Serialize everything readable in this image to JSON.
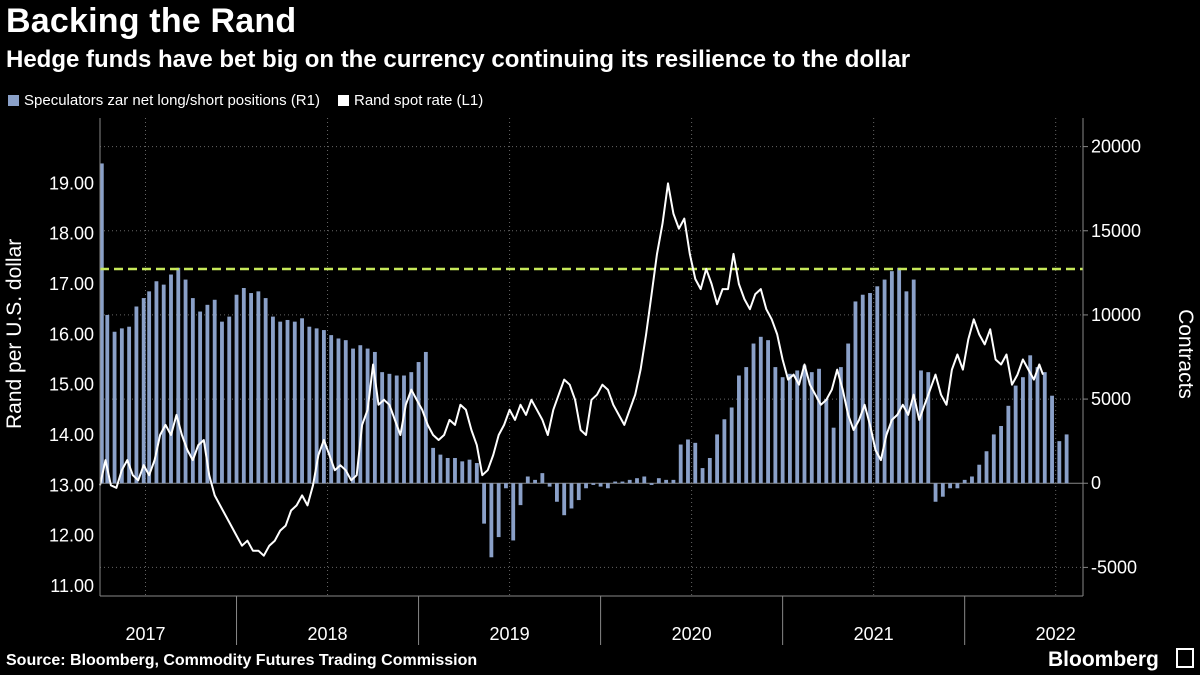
{
  "title": "Backing the Rand",
  "subtitle": "Hedge funds have bet big on the currency continuing its resilience to the dollar",
  "legend": [
    {
      "label": "Speculators zar net long/short positions (R1)",
      "color": "#8aa0c8"
    },
    {
      "label": "Rand spot rate (L1)",
      "color": "#ffffff"
    }
  ],
  "source": "Source: Bloomberg, Commodity Futures Trading Commission",
  "brand": "Bloomberg",
  "chart_data": {
    "type": "bar+line",
    "title": "Backing the Rand",
    "ylabel_left": "Rand per U.S. dollar",
    "ylabel_right": "Contracts",
    "left_axis": {
      "range": [
        10.8,
        20.3
      ],
      "ticks": [
        "11.00",
        "12.00",
        "13.00",
        "14.00",
        "15.00",
        "16.00",
        "17.00",
        "18.00",
        "19.00"
      ],
      "tick_values": [
        11,
        12,
        13,
        14,
        15,
        16,
        17,
        18,
        19
      ]
    },
    "right_axis": {
      "range": [
        -6700,
        21700
      ],
      "ticks": [
        "-5000",
        "0",
        "5000",
        "10000",
        "15000",
        "20000"
      ],
      "tick_values": [
        -5000,
        0,
        5000,
        10000,
        15000,
        20000
      ]
    },
    "x_range": [
      2016.75,
      2022.15
    ],
    "x_labels": [
      {
        "label": "2017",
        "x": 2017.0
      },
      {
        "label": "2018",
        "x": 2018.0
      },
      {
        "label": "2019",
        "x": 2019.0
      },
      {
        "label": "2020",
        "x": 2020.0
      },
      {
        "label": "2021",
        "x": 2021.0
      },
      {
        "label": "2022",
        "x": 2022.0
      }
    ],
    "year_dividers": [
      2017.5,
      2018.5,
      2019.5,
      2020.5,
      2021.5
    ],
    "reference_line": {
      "axis": "left",
      "value": 17.3,
      "color": "#c6e85a",
      "style": "dashed"
    },
    "zero_line": {
      "axis": "right",
      "value": 0
    },
    "positions_series": {
      "name": "Speculators zar net long/short positions (R1)",
      "color": "#8aa0c8",
      "axis": "right",
      "points": [
        [
          2016.76,
          19000
        ],
        [
          2016.79,
          10000
        ],
        [
          2016.83,
          9000
        ],
        [
          2016.87,
          9200
        ],
        [
          2016.91,
          9300
        ],
        [
          2016.95,
          10500
        ],
        [
          2016.99,
          11000
        ],
        [
          2017.02,
          11400
        ],
        [
          2017.06,
          12000
        ],
        [
          2017.1,
          11800
        ],
        [
          2017.14,
          12400
        ],
        [
          2017.18,
          12800
        ],
        [
          2017.22,
          12100
        ],
        [
          2017.26,
          11000
        ],
        [
          2017.3,
          10200
        ],
        [
          2017.34,
          10600
        ],
        [
          2017.38,
          10900
        ],
        [
          2017.42,
          9600
        ],
        [
          2017.46,
          9900
        ],
        [
          2017.5,
          11200
        ],
        [
          2017.54,
          11600
        ],
        [
          2017.58,
          11300
        ],
        [
          2017.62,
          11400
        ],
        [
          2017.66,
          11000
        ],
        [
          2017.7,
          9900
        ],
        [
          2017.74,
          9600
        ],
        [
          2017.78,
          9700
        ],
        [
          2017.82,
          9600
        ],
        [
          2017.86,
          9800
        ],
        [
          2017.9,
          9300
        ],
        [
          2017.94,
          9200
        ],
        [
          2017.98,
          9100
        ],
        [
          2018.02,
          8800
        ],
        [
          2018.06,
          8600
        ],
        [
          2018.1,
          8500
        ],
        [
          2018.14,
          8000
        ],
        [
          2018.18,
          8200
        ],
        [
          2018.22,
          8000
        ],
        [
          2018.26,
          7800
        ],
        [
          2018.3,
          6600
        ],
        [
          2018.34,
          6500
        ],
        [
          2018.38,
          6400
        ],
        [
          2018.42,
          6400
        ],
        [
          2018.46,
          6600
        ],
        [
          2018.5,
          7200
        ],
        [
          2018.54,
          7800
        ],
        [
          2018.58,
          2100
        ],
        [
          2018.62,
          1700
        ],
        [
          2018.66,
          1500
        ],
        [
          2018.7,
          1500
        ],
        [
          2018.74,
          1300
        ],
        [
          2018.78,
          1400
        ],
        [
          2018.82,
          1200
        ],
        [
          2018.86,
          -2400
        ],
        [
          2018.9,
          -4400
        ],
        [
          2018.94,
          -3200
        ],
        [
          2018.98,
          -300
        ],
        [
          2019.02,
          -3400
        ],
        [
          2019.06,
          -1300
        ],
        [
          2019.1,
          400
        ],
        [
          2019.14,
          200
        ],
        [
          2019.18,
          600
        ],
        [
          2019.22,
          -200
        ],
        [
          2019.26,
          -1100
        ],
        [
          2019.3,
          -1900
        ],
        [
          2019.34,
          -1500
        ],
        [
          2019.38,
          -1000
        ],
        [
          2019.42,
          -300
        ],
        [
          2019.46,
          -100
        ],
        [
          2019.5,
          -200
        ],
        [
          2019.54,
          -300
        ],
        [
          2019.58,
          100
        ],
        [
          2019.62,
          100
        ],
        [
          2019.66,
          200
        ],
        [
          2019.7,
          300
        ],
        [
          2019.74,
          400
        ],
        [
          2019.78,
          -100
        ],
        [
          2019.82,
          300
        ],
        [
          2019.86,
          200
        ],
        [
          2019.9,
          200
        ],
        [
          2019.94,
          2300
        ],
        [
          2019.98,
          2600
        ],
        [
          2020.02,
          2400
        ],
        [
          2020.06,
          900
        ],
        [
          2020.1,
          1500
        ],
        [
          2020.14,
          2900
        ],
        [
          2020.18,
          3800
        ],
        [
          2020.22,
          4500
        ],
        [
          2020.26,
          6400
        ],
        [
          2020.3,
          6900
        ],
        [
          2020.34,
          8300
        ],
        [
          2020.38,
          8700
        ],
        [
          2020.42,
          8500
        ],
        [
          2020.46,
          6900
        ],
        [
          2020.5,
          6300
        ],
        [
          2020.54,
          6500
        ],
        [
          2020.58,
          6700
        ],
        [
          2020.62,
          7000
        ],
        [
          2020.66,
          6600
        ],
        [
          2020.7,
          6800
        ],
        [
          2020.74,
          5000
        ],
        [
          2020.78,
          3300
        ],
        [
          2020.82,
          6900
        ],
        [
          2020.86,
          8300
        ],
        [
          2020.9,
          10800
        ],
        [
          2020.94,
          11200
        ],
        [
          2020.98,
          11300
        ],
        [
          2021.02,
          11700
        ],
        [
          2021.06,
          12100
        ],
        [
          2021.1,
          12600
        ],
        [
          2021.14,
          12800
        ],
        [
          2021.18,
          11400
        ],
        [
          2021.22,
          12100
        ],
        [
          2021.26,
          6700
        ],
        [
          2021.3,
          6600
        ],
        [
          2021.34,
          -1100
        ],
        [
          2021.38,
          -800
        ],
        [
          2021.42,
          -300
        ],
        [
          2021.46,
          -300
        ],
        [
          2021.5,
          200
        ],
        [
          2021.54,
          400
        ],
        [
          2021.58,
          1100
        ],
        [
          2021.62,
          1900
        ],
        [
          2021.66,
          2900
        ],
        [
          2021.7,
          3400
        ],
        [
          2021.74,
          4600
        ],
        [
          2021.78,
          5800
        ],
        [
          2021.82,
          6300
        ],
        [
          2021.86,
          7600
        ],
        [
          2021.9,
          6900
        ],
        [
          2021.94,
          6600
        ],
        [
          2021.98,
          5200
        ],
        [
          2022.02,
          2500
        ],
        [
          2022.06,
          2900
        ]
      ]
    },
    "spot_series": {
      "name": "Rand spot rate (L1)",
      "color": "#ffffff",
      "axis": "left",
      "points": [
        [
          2016.75,
          13.0
        ],
        [
          2016.78,
          13.5
        ],
        [
          2016.81,
          13.0
        ],
        [
          2016.84,
          12.95
        ],
        [
          2016.87,
          13.3
        ],
        [
          2016.9,
          13.5
        ],
        [
          2016.93,
          13.2
        ],
        [
          2016.96,
          13.1
        ],
        [
          2016.99,
          13.4
        ],
        [
          2017.02,
          13.2
        ],
        [
          2017.05,
          13.5
        ],
        [
          2017.08,
          14.0
        ],
        [
          2017.11,
          14.2
        ],
        [
          2017.14,
          14.0
        ],
        [
          2017.17,
          14.4
        ],
        [
          2017.2,
          14.0
        ],
        [
          2017.23,
          13.7
        ],
        [
          2017.26,
          13.5
        ],
        [
          2017.29,
          13.8
        ],
        [
          2017.32,
          13.9
        ],
        [
          2017.35,
          13.2
        ],
        [
          2017.38,
          12.8
        ],
        [
          2017.41,
          12.6
        ],
        [
          2017.44,
          12.4
        ],
        [
          2017.47,
          12.2
        ],
        [
          2017.5,
          12.0
        ],
        [
          2017.53,
          11.8
        ],
        [
          2017.56,
          11.9
        ],
        [
          2017.59,
          11.7
        ],
        [
          2017.62,
          11.7
        ],
        [
          2017.65,
          11.6
        ],
        [
          2017.68,
          11.8
        ],
        [
          2017.71,
          11.9
        ],
        [
          2017.74,
          12.1
        ],
        [
          2017.77,
          12.2
        ],
        [
          2017.8,
          12.5
        ],
        [
          2017.83,
          12.6
        ],
        [
          2017.86,
          12.8
        ],
        [
          2017.89,
          12.6
        ],
        [
          2017.92,
          13.0
        ],
        [
          2017.95,
          13.6
        ],
        [
          2017.98,
          13.9
        ],
        [
          2018.01,
          13.6
        ],
        [
          2018.04,
          13.3
        ],
        [
          2018.07,
          13.4
        ],
        [
          2018.1,
          13.3
        ],
        [
          2018.13,
          13.1
        ],
        [
          2018.16,
          13.2
        ],
        [
          2018.19,
          14.2
        ],
        [
          2018.22,
          14.5
        ],
        [
          2018.25,
          15.4
        ],
        [
          2018.28,
          14.6
        ],
        [
          2018.31,
          14.7
        ],
        [
          2018.34,
          14.6
        ],
        [
          2018.37,
          14.3
        ],
        [
          2018.4,
          14.0
        ],
        [
          2018.43,
          14.6
        ],
        [
          2018.46,
          14.9
        ],
        [
          2018.49,
          14.7
        ],
        [
          2018.52,
          14.5
        ],
        [
          2018.55,
          14.2
        ],
        [
          2018.58,
          14.0
        ],
        [
          2018.61,
          13.9
        ],
        [
          2018.64,
          14.0
        ],
        [
          2018.67,
          14.3
        ],
        [
          2018.7,
          14.2
        ],
        [
          2018.73,
          14.6
        ],
        [
          2018.76,
          14.5
        ],
        [
          2018.79,
          14.1
        ],
        [
          2018.82,
          13.8
        ],
        [
          2018.85,
          13.2
        ],
        [
          2018.88,
          13.3
        ],
        [
          2018.91,
          13.6
        ],
        [
          2018.94,
          14.0
        ],
        [
          2018.97,
          14.2
        ],
        [
          2019.0,
          14.5
        ],
        [
          2019.03,
          14.3
        ],
        [
          2019.06,
          14.6
        ],
        [
          2019.09,
          14.4
        ],
        [
          2019.12,
          14.7
        ],
        [
          2019.15,
          14.5
        ],
        [
          2019.18,
          14.3
        ],
        [
          2019.21,
          14.0
        ],
        [
          2019.24,
          14.5
        ],
        [
          2019.27,
          14.8
        ],
        [
          2019.3,
          15.1
        ],
        [
          2019.33,
          15.0
        ],
        [
          2019.36,
          14.7
        ],
        [
          2019.39,
          14.1
        ],
        [
          2019.42,
          14.0
        ],
        [
          2019.45,
          14.7
        ],
        [
          2019.48,
          14.8
        ],
        [
          2019.51,
          15.0
        ],
        [
          2019.54,
          14.9
        ],
        [
          2019.57,
          14.6
        ],
        [
          2019.6,
          14.4
        ],
        [
          2019.63,
          14.2
        ],
        [
          2019.66,
          14.5
        ],
        [
          2019.69,
          14.8
        ],
        [
          2019.72,
          15.3
        ],
        [
          2019.75,
          16.0
        ],
        [
          2019.78,
          16.8
        ],
        [
          2019.81,
          17.6
        ],
        [
          2019.84,
          18.2
        ],
        [
          2019.87,
          19.0
        ],
        [
          2019.9,
          18.4
        ],
        [
          2019.93,
          18.1
        ],
        [
          2019.96,
          18.3
        ],
        [
          2019.99,
          17.6
        ],
        [
          2020.02,
          17.1
        ],
        [
          2020.05,
          16.9
        ],
        [
          2020.08,
          17.3
        ],
        [
          2020.11,
          17.0
        ],
        [
          2020.14,
          16.6
        ],
        [
          2020.17,
          16.9
        ],
        [
          2020.2,
          16.9
        ],
        [
          2020.23,
          17.6
        ],
        [
          2020.26,
          17.0
        ],
        [
          2020.29,
          16.7
        ],
        [
          2020.32,
          16.5
        ],
        [
          2020.35,
          16.8
        ],
        [
          2020.38,
          16.9
        ],
        [
          2020.41,
          16.5
        ],
        [
          2020.44,
          16.3
        ],
        [
          2020.47,
          16.0
        ],
        [
          2020.5,
          15.5
        ],
        [
          2020.53,
          15.1
        ],
        [
          2020.56,
          15.2
        ],
        [
          2020.59,
          15.0
        ],
        [
          2020.62,
          15.4
        ],
        [
          2020.65,
          15.0
        ],
        [
          2020.68,
          14.8
        ],
        [
          2020.71,
          14.6
        ],
        [
          2020.74,
          14.7
        ],
        [
          2020.77,
          14.9
        ],
        [
          2020.8,
          15.3
        ],
        [
          2020.83,
          14.9
        ],
        [
          2020.86,
          14.4
        ],
        [
          2020.89,
          14.1
        ],
        [
          2020.92,
          14.3
        ],
        [
          2020.95,
          14.6
        ],
        [
          2020.98,
          14.2
        ],
        [
          2021.01,
          13.7
        ],
        [
          2021.04,
          13.5
        ],
        [
          2021.07,
          14.0
        ],
        [
          2021.1,
          14.3
        ],
        [
          2021.13,
          14.4
        ],
        [
          2021.16,
          14.6
        ],
        [
          2021.19,
          14.4
        ],
        [
          2021.22,
          14.8
        ],
        [
          2021.25,
          14.3
        ],
        [
          2021.28,
          14.6
        ],
        [
          2021.31,
          14.9
        ],
        [
          2021.34,
          15.2
        ],
        [
          2021.37,
          14.8
        ],
        [
          2021.4,
          14.6
        ],
        [
          2021.43,
          15.3
        ],
        [
          2021.46,
          15.6
        ],
        [
          2021.49,
          15.3
        ],
        [
          2021.52,
          15.9
        ],
        [
          2021.55,
          16.3
        ],
        [
          2021.58,
          16.0
        ],
        [
          2021.61,
          15.8
        ],
        [
          2021.64,
          16.1
        ],
        [
          2021.67,
          15.5
        ],
        [
          2021.7,
          15.4
        ],
        [
          2021.73,
          15.6
        ],
        [
          2021.76,
          15.0
        ],
        [
          2021.79,
          15.2
        ],
        [
          2021.82,
          15.5
        ],
        [
          2021.85,
          15.3
        ],
        [
          2021.88,
          15.1
        ],
        [
          2021.91,
          15.4
        ],
        [
          2021.93,
          15.2
        ]
      ]
    }
  }
}
